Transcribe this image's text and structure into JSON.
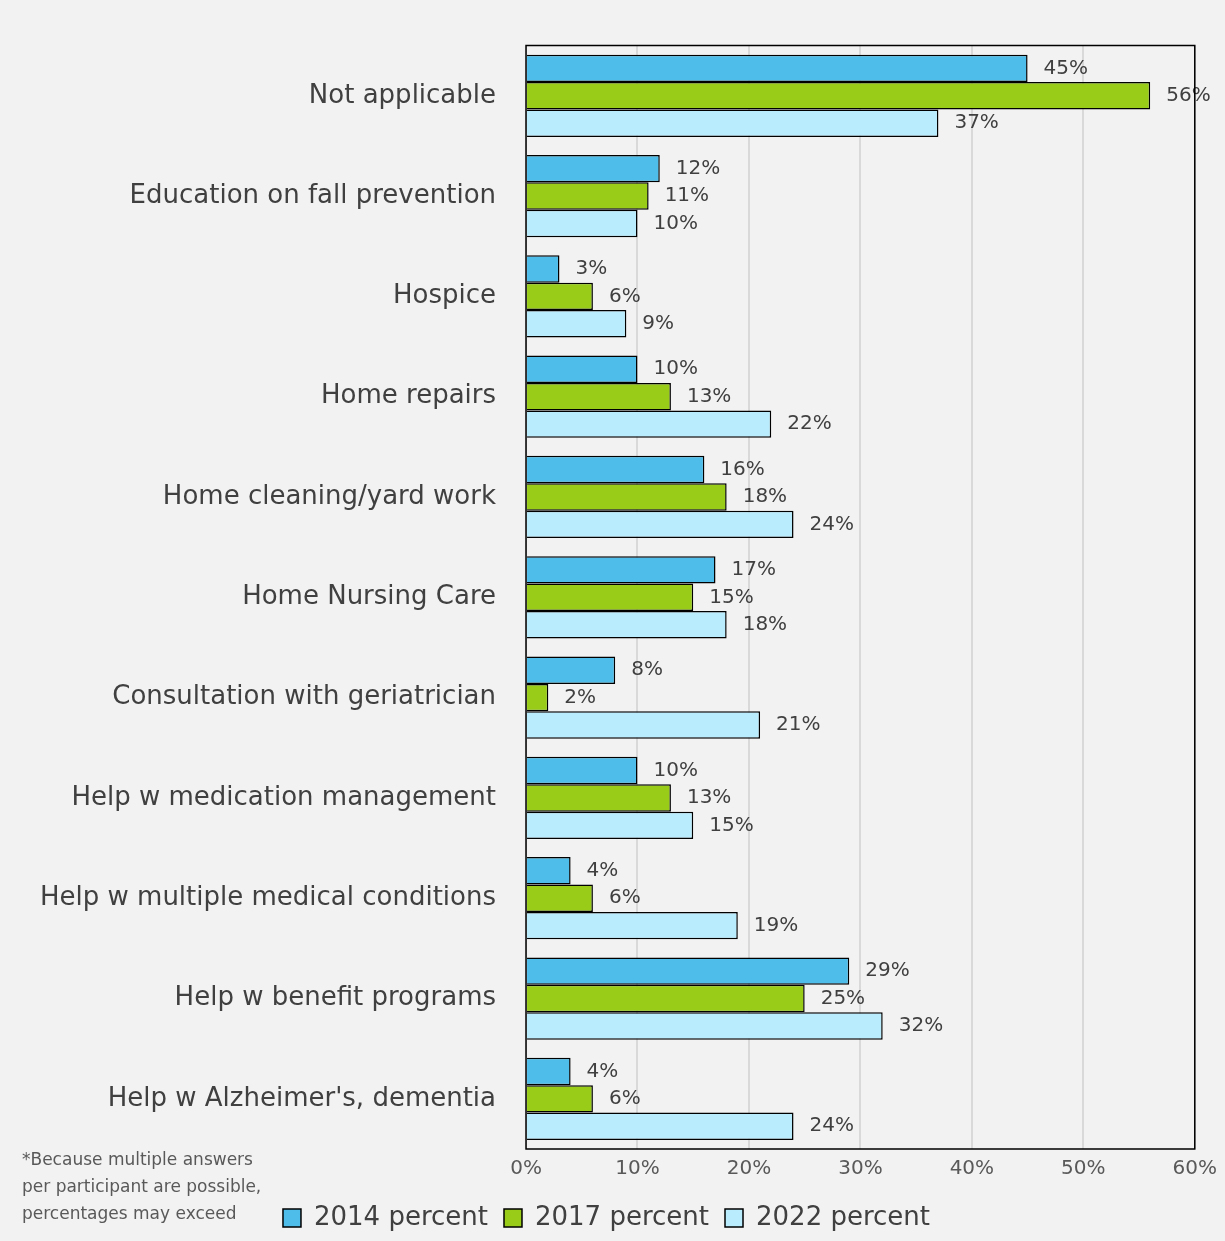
{
  "chart_data": {
    "type": "bar",
    "orientation": "horizontal",
    "categories": [
      "Not applicable",
      "Education on fall prevention",
      "Hospice",
      "Home repairs",
      "Home cleaning/yard work",
      "Home Nursing Care",
      "Consultation with geriatrician",
      "Help w medication management",
      "Help w multiple medical conditions",
      "Help w benefit programs",
      "Help w Alzheimer's, dementia"
    ],
    "series": [
      {
        "name": "2014 percent",
        "color": "#4fbde9",
        "values": [
          45,
          12,
          3,
          10,
          16,
          17,
          8,
          10,
          4,
          29,
          4
        ],
        "value_labels": [
          "45%",
          "12%",
          "3%",
          "10%",
          "16%",
          "17%",
          "8%",
          "10%",
          "4%",
          "29%",
          "4%"
        ]
      },
      {
        "name": "2017 percent",
        "color": "#99cc18",
        "values": [
          56,
          11,
          6,
          13,
          18,
          15,
          2,
          13,
          6,
          25,
          6
        ],
        "value_labels": [
          "56%",
          "11%",
          "6%",
          "13%",
          "18%",
          "15%",
          "2%",
          "13%",
          "6%",
          "25%",
          "6%"
        ]
      },
      {
        "name": "2022 percent",
        "color": "#b9ecfd",
        "values": [
          37,
          10,
          9,
          22,
          24,
          18,
          21,
          15,
          19,
          32,
          24
        ],
        "value_labels": [
          "37%",
          "10%",
          "9%",
          "22%",
          "24%",
          "18%",
          "21%",
          "15%",
          "19%",
          "32%",
          "24%"
        ]
      }
    ],
    "xlim": [
      0,
      60
    ],
    "xticks": [
      {
        "value": 0,
        "label": "0%"
      },
      {
        "value": 10,
        "label": "10%"
      },
      {
        "value": 20,
        "label": "20%"
      },
      {
        "value": 30,
        "label": "30%"
      },
      {
        "value": 40,
        "label": "40%"
      },
      {
        "value": 50,
        "label": "50%"
      },
      {
        "value": 60,
        "label": "60%"
      }
    ],
    "grid": "x",
    "legend": "bottom",
    "annotations": [
      "*Because multiple answers per participant are possible, percentages may exceed"
    ]
  }
}
